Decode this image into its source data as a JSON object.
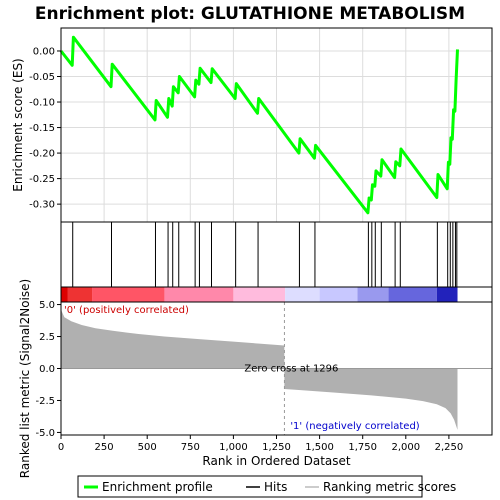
{
  "chart_data": {
    "type": "line",
    "title": "Enrichment plot: GLUTATHIONE METABOLISM",
    "es_panel": {
      "ylabel": "Enrichment score (ES)",
      "ylim": [
        -0.335,
        0.045
      ],
      "yticks": [
        0.0,
        -0.05,
        -0.1,
        -0.15,
        -0.2,
        -0.25,
        -0.3
      ],
      "ytick_labels": [
        "0.00",
        "-0.05",
        "-0.10",
        "-0.15",
        "-0.20",
        "-0.25",
        "-0.30"
      ],
      "grid": true,
      "series": [
        {
          "name": "Enrichment profile",
          "color": "#00ff00",
          "x": [
            0,
            65,
            72,
            290,
            297,
            545,
            552,
            618,
            625,
            645,
            652,
            680,
            687,
            775,
            782,
            800,
            807,
            870,
            877,
            1010,
            1017,
            1140,
            1147,
            1380,
            1387,
            1470,
            1477,
            1780,
            1787,
            1800,
            1807,
            1820,
            1827,
            1855,
            1862,
            1935,
            1942,
            1965,
            1972,
            2180,
            2187,
            2240,
            2247,
            2255,
            2262,
            2270,
            2277,
            2285,
            2292,
            2300
          ],
          "y": [
            0.0,
            -0.028,
            0.027,
            -0.07,
            -0.026,
            -0.135,
            -0.097,
            -0.13,
            -0.093,
            -0.108,
            -0.07,
            -0.082,
            -0.05,
            -0.09,
            -0.057,
            -0.065,
            -0.034,
            -0.062,
            -0.035,
            -0.093,
            -0.064,
            -0.122,
            -0.093,
            -0.2,
            -0.172,
            -0.21,
            -0.185,
            -0.317,
            -0.288,
            -0.292,
            -0.262,
            -0.265,
            -0.235,
            -0.245,
            -0.213,
            -0.248,
            -0.217,
            -0.225,
            -0.192,
            -0.287,
            -0.242,
            -0.27,
            -0.218,
            -0.222,
            -0.17,
            -0.173,
            -0.115,
            -0.118,
            -0.057,
            0.003
          ]
        }
      ]
    },
    "hits": {
      "name": "Hits",
      "color": "#000000",
      "positions": [
        68,
        293,
        548,
        621,
        648,
        683,
        778,
        803,
        873,
        1013,
        1143,
        1383,
        1473,
        1783,
        1803,
        1823,
        1858,
        1938,
        1968,
        2183,
        2243,
        2258,
        2273,
        2288,
        2296
      ]
    },
    "rank_metric": {
      "name": "Ranking metric scores",
      "ylabel": "Ranked list metric (Signal2Noise)",
      "xlabel": "Rank in Ordered Dataset",
      "xlim": [
        0,
        2500
      ],
      "ylim": [
        -5.2,
        5.2
      ],
      "xticks": [
        0,
        250,
        500,
        750,
        1000,
        1250,
        1500,
        1750,
        2000,
        2250
      ],
      "xtick_labels": [
        "0",
        "250",
        "500",
        "750",
        "1,000",
        "1,250",
        "1,500",
        "1,750",
        "2,000",
        "2,250"
      ],
      "yticks": [
        5.0,
        2.5,
        0.0,
        -2.5,
        -5.0
      ],
      "ytick_labels": [
        "5.0",
        "2.5",
        "0.0",
        "-2.5",
        "-5.0"
      ],
      "profile_x": [
        0,
        20,
        60,
        120,
        200,
        300,
        450,
        600,
        800,
        1000,
        1150,
        1295,
        1296,
        1400,
        1600,
        1800,
        2000,
        2100,
        2180,
        2230,
        2260,
        2280,
        2300
      ],
      "profile_y": [
        4.6,
        4.0,
        3.7,
        3.4,
        3.15,
        2.95,
        2.7,
        2.5,
        2.3,
        2.1,
        1.95,
        1.8,
        -1.6,
        -1.7,
        -1.9,
        -2.1,
        -2.35,
        -2.55,
        -2.8,
        -3.1,
        -3.5,
        -4.0,
        -4.8
      ],
      "zero_cross_label": "Zero cross at 1296",
      "zero_cross": 1296,
      "positive_label": "'0' (positively correlated)",
      "negative_label": "'1' (negatively correlated)",
      "positive_color": "#cc0000",
      "negative_color": "#0000cc"
    },
    "legend": {
      "placement": "bottom",
      "items": [
        {
          "label": "Enrichment profile",
          "color": "#00ff00"
        },
        {
          "label": "Hits",
          "color": "#000000"
        },
        {
          "label": "Ranking metric scores",
          "color": "#bbbbbb"
        }
      ]
    }
  }
}
